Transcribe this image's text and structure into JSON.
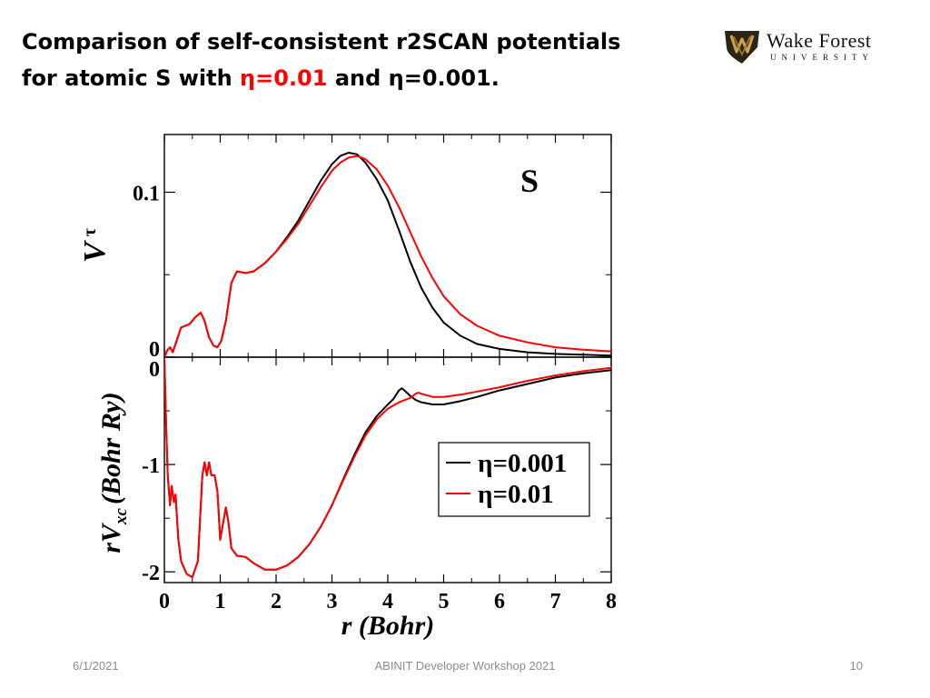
{
  "slide": {
    "title_line1": "Comparison of self-consistent r2SCAN potentials",
    "title_line2_pre": "for atomic S with ",
    "title_eta_red": "η=0.01",
    "title_line2_mid": " and ",
    "title_eta_black": "η=0.001.",
    "logo_main": "Wake Forest",
    "logo_sub": "UNIVERSITY",
    "footer_date": "6/1/2021",
    "footer_center": "ABINIT Developer Workshop 2021",
    "footer_page": "10"
  },
  "colors": {
    "eta_0_001": "#000000",
    "eta_0_01": "#ff0000",
    "logo_gold": "#9e7b2f"
  },
  "chart_data": [
    {
      "type": "line",
      "panel": "top",
      "annotation": "S",
      "ylabel": "V τ",
      "xlim": [
        0,
        8
      ],
      "ylim": [
        0,
        0.135
      ],
      "yticks": [
        0,
        0.1
      ],
      "ytick_labels": [
        "0",
        "0.1"
      ],
      "series": [
        {
          "name": "η=0.001",
          "color": "#000000",
          "x": [
            0,
            0.05,
            0.1,
            0.15,
            0.2,
            0.3,
            0.45,
            0.55,
            0.65,
            0.72,
            0.8,
            0.88,
            0.95,
            1.02,
            1.1,
            1.2,
            1.3,
            1.45,
            1.6,
            1.8,
            2.0,
            2.2,
            2.4,
            2.6,
            2.8,
            3.0,
            3.15,
            3.3,
            3.45,
            3.6,
            3.8,
            4.0,
            4.2,
            4.4,
            4.6,
            4.8,
            5.0,
            5.3,
            5.6,
            6.0,
            6.5,
            7.0,
            7.5,
            8.0
          ],
          "y": [
            0.0,
            0.004,
            0.006,
            0.003,
            0.008,
            0.018,
            0.02,
            0.024,
            0.027,
            0.022,
            0.012,
            0.007,
            0.006,
            0.01,
            0.022,
            0.045,
            0.052,
            0.051,
            0.052,
            0.057,
            0.064,
            0.073,
            0.083,
            0.095,
            0.107,
            0.117,
            0.122,
            0.124,
            0.123,
            0.118,
            0.108,
            0.095,
            0.077,
            0.058,
            0.042,
            0.03,
            0.021,
            0.013,
            0.008,
            0.005,
            0.003,
            0.002,
            0.0015,
            0.001
          ]
        },
        {
          "name": "η=0.01",
          "color": "#ff0000",
          "x": [
            0,
            0.05,
            0.1,
            0.15,
            0.2,
            0.3,
            0.45,
            0.55,
            0.65,
            0.72,
            0.8,
            0.88,
            0.95,
            1.02,
            1.1,
            1.2,
            1.3,
            1.45,
            1.6,
            1.8,
            2.0,
            2.2,
            2.4,
            2.6,
            2.8,
            3.0,
            3.15,
            3.3,
            3.45,
            3.6,
            3.8,
            4.0,
            4.2,
            4.4,
            4.6,
            4.8,
            5.0,
            5.3,
            5.6,
            6.0,
            6.5,
            7.0,
            7.5,
            8.0
          ],
          "y": [
            0.0,
            0.004,
            0.006,
            0.003,
            0.008,
            0.018,
            0.02,
            0.024,
            0.027,
            0.022,
            0.012,
            0.007,
            0.006,
            0.01,
            0.022,
            0.045,
            0.052,
            0.051,
            0.052,
            0.057,
            0.064,
            0.072,
            0.081,
            0.092,
            0.103,
            0.113,
            0.118,
            0.121,
            0.122,
            0.12,
            0.114,
            0.104,
            0.091,
            0.076,
            0.061,
            0.048,
            0.037,
            0.026,
            0.019,
            0.013,
            0.009,
            0.006,
            0.0045,
            0.0035
          ]
        }
      ]
    },
    {
      "type": "line",
      "panel": "bottom",
      "xlabel": "r (Bohr)",
      "ylabel": "rV xc (Bohr Ry)",
      "xlim": [
        0,
        8
      ],
      "ylim": [
        -2.1,
        0
      ],
      "xticks": [
        0,
        1,
        2,
        3,
        4,
        5,
        6,
        7,
        8
      ],
      "xtick_labels": [
        "0",
        "1",
        "2",
        "3",
        "4",
        "5",
        "6",
        "7",
        "8"
      ],
      "yticks": [
        0,
        -1,
        -2
      ],
      "ytick_labels": [
        "0",
        "-1",
        "-2"
      ],
      "legend": "center-right",
      "series": [
        {
          "name": "η=0.001",
          "color": "#000000",
          "x": [
            0,
            0.03,
            0.06,
            0.1,
            0.13,
            0.17,
            0.2,
            0.25,
            0.3,
            0.4,
            0.5,
            0.6,
            0.68,
            0.72,
            0.76,
            0.8,
            0.84,
            0.9,
            0.95,
            1.0,
            1.05,
            1.1,
            1.15,
            1.2,
            1.3,
            1.45,
            1.6,
            1.8,
            2.0,
            2.2,
            2.4,
            2.6,
            2.8,
            3.0,
            3.2,
            3.4,
            3.6,
            3.8,
            4.0,
            4.1,
            4.2,
            4.25,
            4.3,
            4.4,
            4.5,
            4.6,
            4.8,
            5.0,
            5.3,
            5.6,
            6.0,
            6.5,
            7.0,
            7.5,
            8.0
          ],
          "y": [
            0,
            -0.6,
            -1.1,
            -1.38,
            -1.2,
            -1.35,
            -1.28,
            -1.7,
            -1.9,
            -2.02,
            -2.05,
            -1.9,
            -1.1,
            -0.98,
            -1.1,
            -0.98,
            -1.1,
            -1.1,
            -1.25,
            -1.7,
            -1.55,
            -1.4,
            -1.55,
            -1.78,
            -1.85,
            -1.86,
            -1.92,
            -1.98,
            -1.98,
            -1.94,
            -1.86,
            -1.74,
            -1.58,
            -1.38,
            -1.14,
            -0.91,
            -0.7,
            -0.55,
            -0.44,
            -0.39,
            -0.31,
            -0.29,
            -0.31,
            -0.36,
            -0.4,
            -0.42,
            -0.44,
            -0.44,
            -0.41,
            -0.37,
            -0.31,
            -0.25,
            -0.19,
            -0.15,
            -0.12
          ]
        },
        {
          "name": "η=0.01",
          "color": "#ff0000",
          "x": [
            0,
            0.03,
            0.06,
            0.1,
            0.13,
            0.17,
            0.2,
            0.25,
            0.3,
            0.4,
            0.5,
            0.6,
            0.68,
            0.72,
            0.76,
            0.8,
            0.84,
            0.9,
            0.95,
            1.0,
            1.05,
            1.1,
            1.15,
            1.2,
            1.3,
            1.45,
            1.6,
            1.8,
            2.0,
            2.2,
            2.4,
            2.6,
            2.8,
            3.0,
            3.2,
            3.4,
            3.6,
            3.8,
            4.0,
            4.2,
            4.4,
            4.5,
            4.55,
            4.6,
            4.8,
            5.0,
            5.3,
            5.6,
            6.0,
            6.5,
            7.0,
            7.5,
            8.0
          ],
          "y": [
            0,
            -0.6,
            -1.1,
            -1.38,
            -1.2,
            -1.35,
            -1.28,
            -1.7,
            -1.9,
            -2.02,
            -2.05,
            -1.9,
            -1.1,
            -0.98,
            -1.1,
            -0.98,
            -1.1,
            -1.1,
            -1.25,
            -1.7,
            -1.55,
            -1.4,
            -1.55,
            -1.78,
            -1.85,
            -1.86,
            -1.92,
            -1.98,
            -1.98,
            -1.94,
            -1.86,
            -1.74,
            -1.58,
            -1.38,
            -1.15,
            -0.93,
            -0.73,
            -0.58,
            -0.48,
            -0.42,
            -0.38,
            -0.34,
            -0.33,
            -0.34,
            -0.37,
            -0.37,
            -0.35,
            -0.32,
            -0.28,
            -0.22,
            -0.17,
            -0.13,
            -0.1
          ]
        }
      ]
    }
  ]
}
